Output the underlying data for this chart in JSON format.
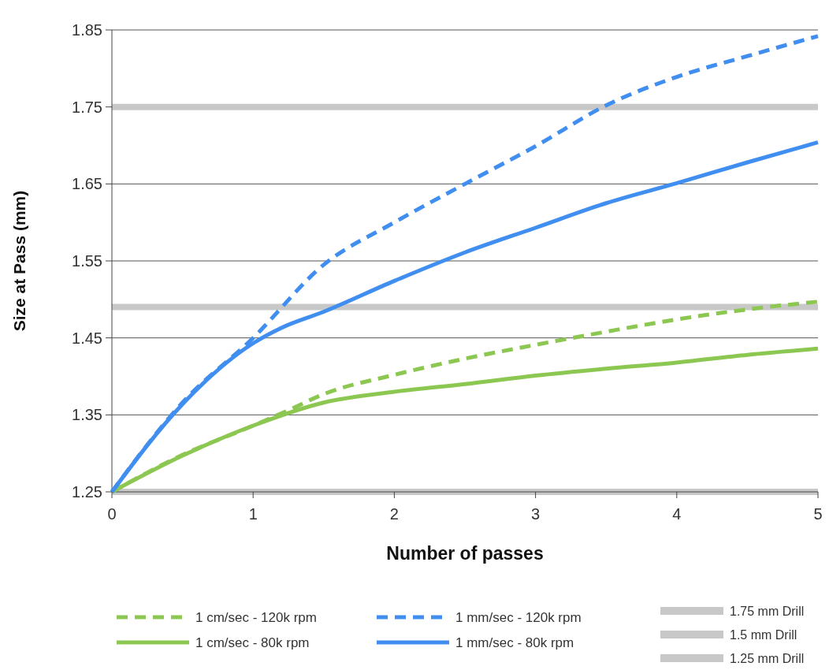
{
  "chart_data": {
    "type": "line",
    "xlabel": "Number of passes",
    "ylabel": "Size at Pass (mm)",
    "xlim": [
      0,
      5
    ],
    "xticks": [
      0,
      1,
      2,
      3,
      4,
      5
    ],
    "ylim": [
      1.25,
      1.85
    ],
    "yticks": [
      1.25,
      1.35,
      1.45,
      1.55,
      1.65,
      1.75,
      1.85
    ],
    "grid": "y",
    "legend": "bottom",
    "series": [
      {
        "name": "1 cm/sec - 120k rpm",
        "color": "#8cc751",
        "line_style": "dashed",
        "x": [
          0,
          0.5,
          1,
          1.25,
          1.5,
          2,
          2.5,
          3,
          3.5,
          4,
          4.5,
          5
        ],
        "values": [
          1.25,
          1.298,
          1.336,
          1.356,
          1.377,
          1.402,
          1.423,
          1.441,
          1.458,
          1.474,
          1.487,
          1.497
        ]
      },
      {
        "name": "1 cm/sec - 80k rpm",
        "color": "#8cc751",
        "line_style": "solid",
        "x": [
          0,
          0.5,
          1,
          1.5,
          2,
          2.5,
          3,
          3.5,
          4,
          4.5,
          5
        ],
        "values": [
          1.25,
          1.297,
          1.336,
          1.366,
          1.38,
          1.39,
          1.401,
          1.41,
          1.418,
          1.428,
          1.436
        ]
      },
      {
        "name": "1 mm/sec - 120k rpm",
        "color": "#3f8ef0",
        "line_style": "dashed",
        "x": [
          0,
          0.5,
          1,
          1.5,
          2,
          2.5,
          3,
          3.5,
          4,
          4.5,
          5
        ],
        "values": [
          1.25,
          1.366,
          1.45,
          1.545,
          1.6,
          1.65,
          1.699,
          1.752,
          1.789,
          1.816,
          1.842
        ]
      },
      {
        "name": "1 mm/sec - 80k rpm",
        "color": "#3f8ef0",
        "line_style": "solid",
        "x": [
          0,
          0.5,
          1,
          1.2,
          1.5,
          2,
          2.5,
          3,
          3.5,
          4,
          4.5,
          5
        ],
        "values": [
          1.25,
          1.364,
          1.443,
          1.463,
          1.484,
          1.524,
          1.561,
          1.593,
          1.625,
          1.651,
          1.678,
          1.704
        ]
      }
    ],
    "ref_lines": [
      {
        "axis": "y",
        "value": 1.75,
        "label": "1.75 mm Drill",
        "color": "#c8c8c8"
      },
      {
        "axis": "y",
        "value": 1.49,
        "label": "1.5 mm Drill",
        "color": "#c8c8c8"
      },
      {
        "axis": "y",
        "value": 1.25,
        "label": "1.25 mm Drill",
        "color": "#c8c8c8"
      }
    ]
  }
}
